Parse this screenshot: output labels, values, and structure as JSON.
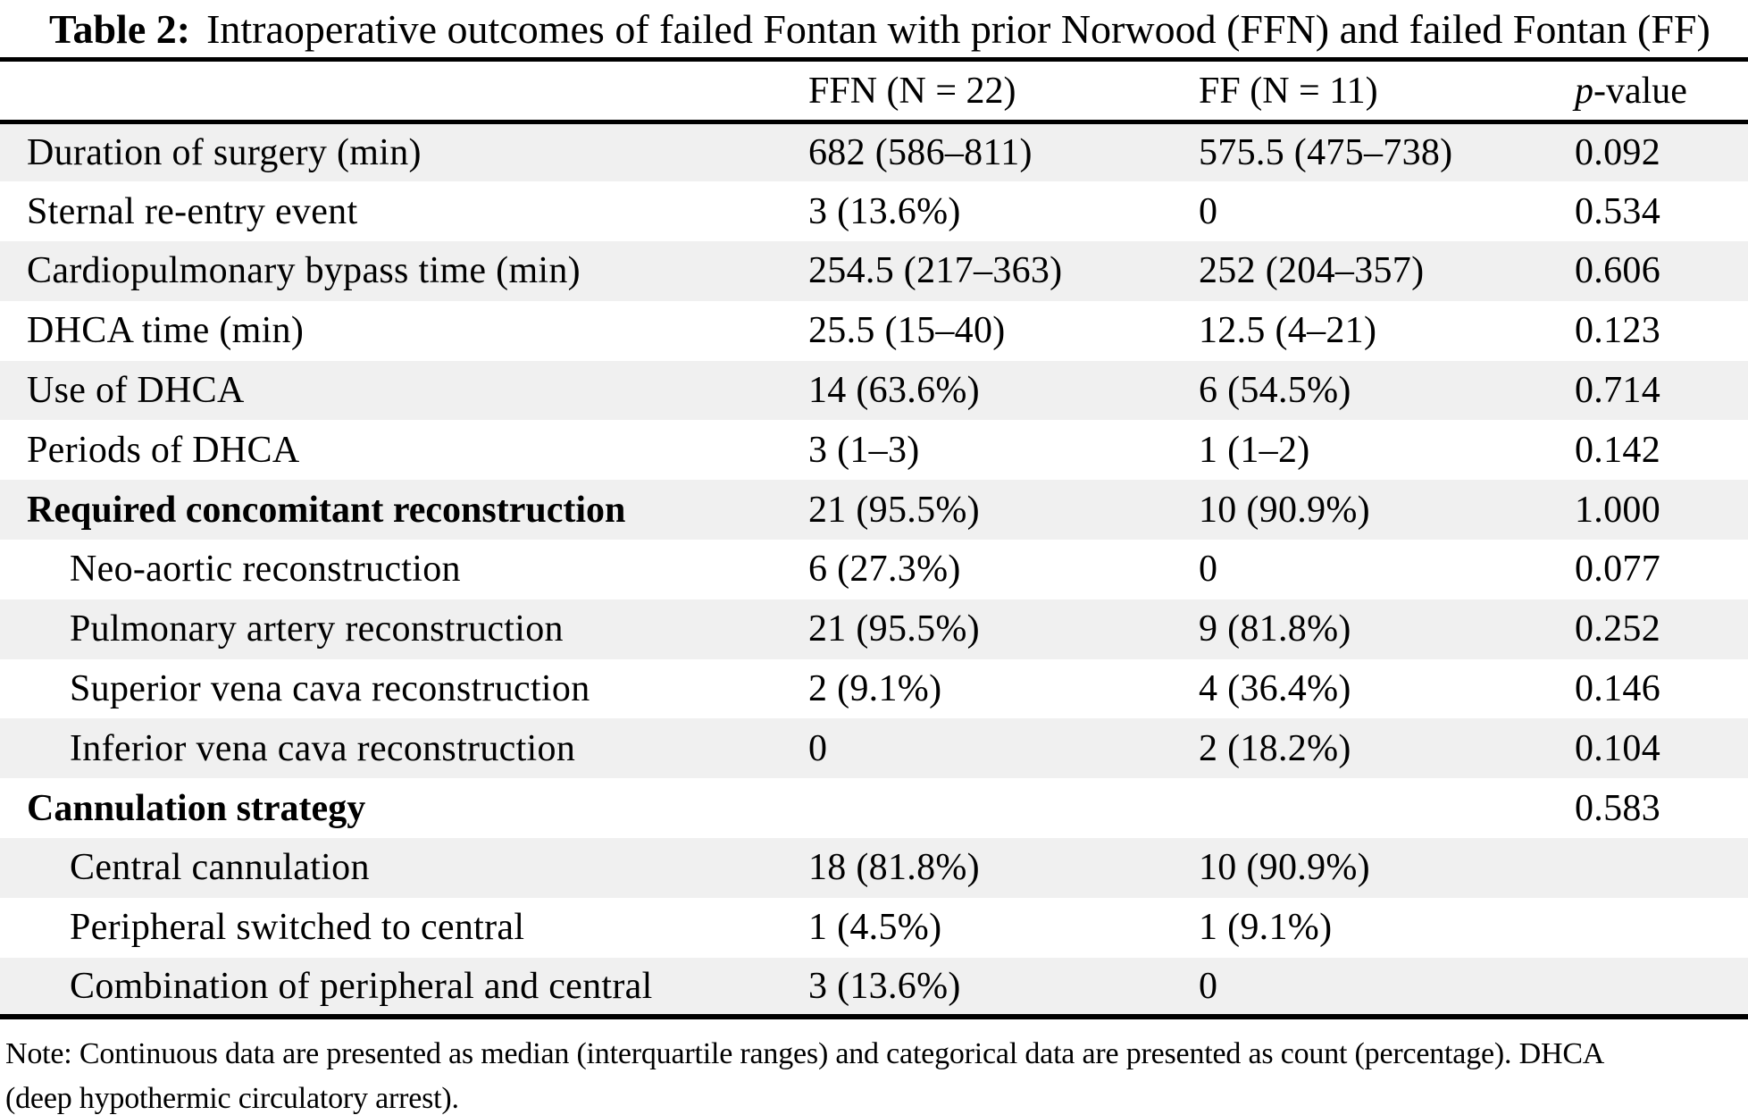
{
  "title": {
    "label": "Table 2:",
    "caption": "Intraoperative outcomes of failed Fontan with prior Norwood (FFN) and failed Fontan (FF)"
  },
  "header": {
    "row_label": "",
    "ffn": "FFN (N = 22)",
    "ff": "FF (N = 11)",
    "p_italic": "p",
    "p_rest": "-value"
  },
  "rows": [
    {
      "label": "Duration of surgery (min)",
      "ffn": "682 (586–811)",
      "ff": "575.5 (475–738)",
      "p": "0.092",
      "bold": false,
      "indent": false
    },
    {
      "label": "Sternal re-entry event",
      "ffn": "3 (13.6%)",
      "ff": "0",
      "p": "0.534",
      "bold": false,
      "indent": false
    },
    {
      "label": "Cardiopulmonary bypass time (min)",
      "ffn": "254.5 (217–363)",
      "ff": "252 (204–357)",
      "p": "0.606",
      "bold": false,
      "indent": false
    },
    {
      "label": "DHCA time (min)",
      "ffn": "25.5 (15–40)",
      "ff": "12.5 (4–21)",
      "p": "0.123",
      "bold": false,
      "indent": false
    },
    {
      "label": "Use of DHCA",
      "ffn": "14 (63.6%)",
      "ff": "6 (54.5%)",
      "p": "0.714",
      "bold": false,
      "indent": false
    },
    {
      "label": "Periods of DHCA",
      "ffn": "3 (1–3)",
      "ff": "1 (1–2)",
      "p": "0.142",
      "bold": false,
      "indent": false
    },
    {
      "label": "Required concomitant reconstruction",
      "ffn": "21 (95.5%)",
      "ff": "10 (90.9%)",
      "p": "1.000",
      "bold": true,
      "indent": false
    },
    {
      "label": "Neo-aortic reconstruction",
      "ffn": "6 (27.3%)",
      "ff": "0",
      "p": "0.077",
      "bold": false,
      "indent": true
    },
    {
      "label": "Pulmonary artery reconstruction",
      "ffn": "21 (95.5%)",
      "ff": "9 (81.8%)",
      "p": "0.252",
      "bold": false,
      "indent": true
    },
    {
      "label": "Superior vena cava reconstruction",
      "ffn": "2 (9.1%)",
      "ff": "4 (36.4%)",
      "p": "0.146",
      "bold": false,
      "indent": true
    },
    {
      "label": "Inferior vena cava reconstruction",
      "ffn": "0",
      "ff": "2 (18.2%)",
      "p": "0.104",
      "bold": false,
      "indent": true
    },
    {
      "label": "Cannulation strategy",
      "ffn": "",
      "ff": "",
      "p": "0.583",
      "bold": true,
      "indent": false
    },
    {
      "label": "Central cannulation",
      "ffn": "18 (81.8%)",
      "ff": "10 (90.9%)",
      "p": "",
      "bold": false,
      "indent": true
    },
    {
      "label": "Peripheral switched to central",
      "ffn": "1 (4.5%)",
      "ff": "1 (9.1%)",
      "p": "",
      "bold": false,
      "indent": true
    },
    {
      "label": "Combination of peripheral and central",
      "ffn": "3 (13.6%)",
      "ff": "0",
      "p": "",
      "bold": false,
      "indent": true
    }
  ],
  "note_lines": [
    "Note: Continuous data are presented as median (interquartile ranges) and categorical data are presented as count (percentage). DHCA",
    "(deep hypothermic circulatory arrest)."
  ],
  "colors": {
    "stripe": "#f0f0f0",
    "rule": "#000000",
    "text": "#000000",
    "background": "#ffffff"
  }
}
